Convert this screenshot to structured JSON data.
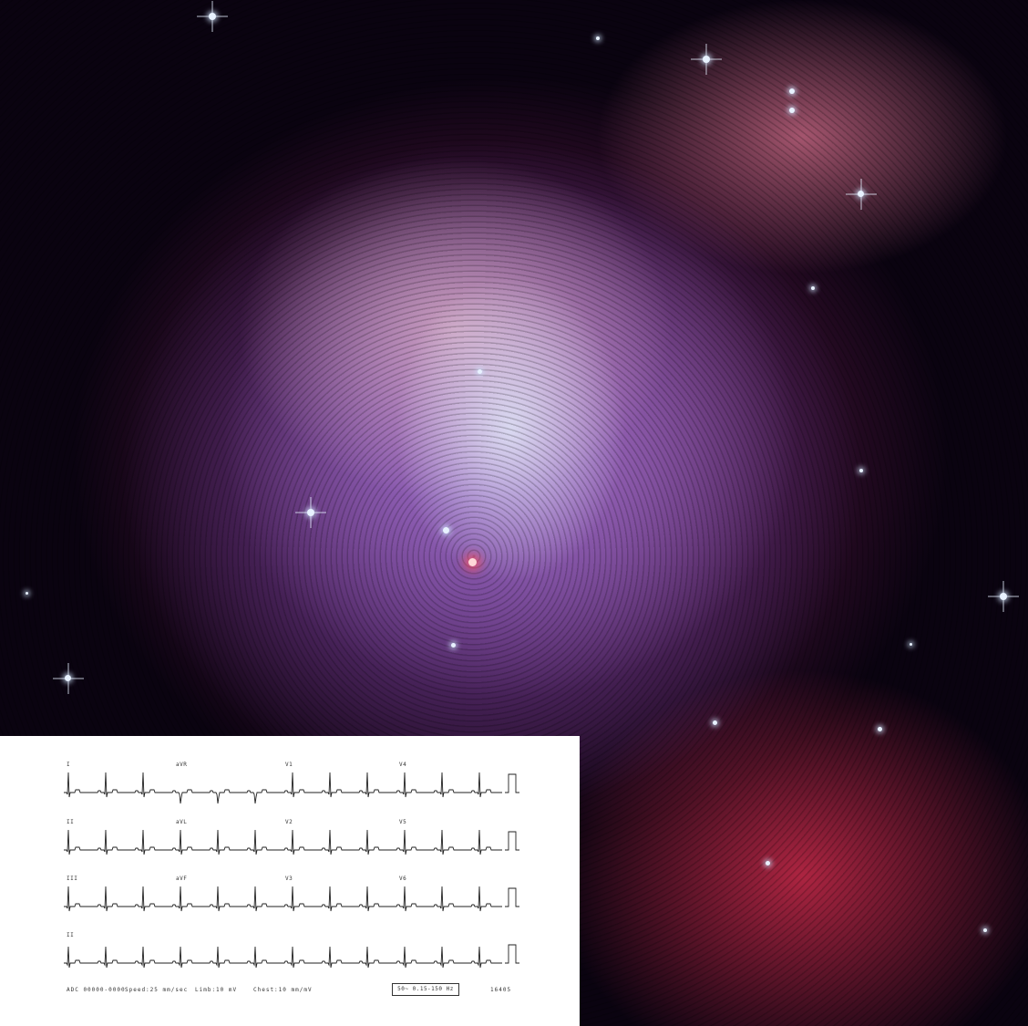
{
  "ecg": {
    "leads": [
      "I",
      "aVR",
      "V1",
      "V4",
      "II",
      "aVL",
      "V2",
      "V5",
      "III",
      "aVF",
      "V3",
      "V6",
      "II"
    ],
    "footer": {
      "device": "ADC 00000-0000",
      "speed": "Speed:25 mm/sec",
      "limb": "Limb:10   mV",
      "chest": "Chest:10 mm/mV",
      "filter": "50~ 0.15-150 Hz",
      "code": "16405"
    }
  },
  "colors": {
    "ecg_trace": "#222222",
    "ecg_background": "#ffffff"
  }
}
